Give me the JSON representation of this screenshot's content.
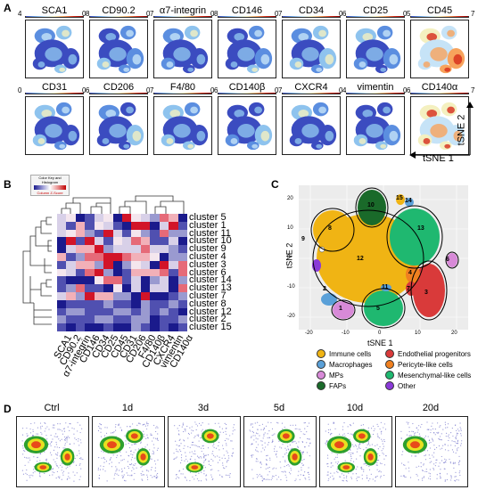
{
  "panels": {
    "a": "A",
    "b": "B",
    "c": "C",
    "d": "D"
  },
  "panel_a": {
    "markers": [
      {
        "name": "SCA1",
        "min": "4",
        "max": "8"
      },
      {
        "name": "CD90.2",
        "min": "0",
        "max": "7"
      },
      {
        "name": "α7-integrin",
        "min": "0",
        "max": "8"
      },
      {
        "name": "CD146",
        "min": "0",
        "max": "7"
      },
      {
        "name": "CD34",
        "min": "0",
        "max": "6"
      },
      {
        "name": "CD25",
        "min": "0",
        "max": "5"
      },
      {
        "name": "CD45",
        "min": "0",
        "max": "7"
      },
      {
        "name": "CD31",
        "min": "0",
        "max": "6"
      },
      {
        "name": "CD206",
        "min": "0",
        "max": "7"
      },
      {
        "name": "F4/80",
        "min": "0",
        "max": "6"
      },
      {
        "name": "CD140β",
        "min": "0",
        "max": "7"
      },
      {
        "name": "CXCR4",
        "min": "0",
        "max": "4"
      },
      {
        "name": "vimentin",
        "min": "0",
        "max": "6"
      },
      {
        "name": "CD140α",
        "min": "0",
        "max": "7"
      }
    ],
    "axis_x": "tSNE 1",
    "axis_y": "tSNE 2"
  },
  "panel_b": {
    "key_title": "Color Key and Histogram",
    "key_sub": "Column Z-Score",
    "clusters": [
      "cluster 5",
      "cluster 1",
      "cluster 11",
      "cluster 10",
      "cluster 9",
      "cluster 4",
      "cluster 3",
      "cluster 6",
      "cluster 14",
      "cluster 13",
      "cluster 7",
      "cluster 8",
      "cluster 12",
      "cluster 2",
      "cluster 15"
    ],
    "markers": [
      "SCA1",
      "CD90.2",
      "α7-integrin",
      "CD146",
      "CD34",
      "CD25",
      "CD45",
      "CD31",
      "CD206",
      "F4/80",
      "CD140β",
      "CXCR4",
      "vimentin",
      "CD140α"
    ]
  },
  "panel_c": {
    "xlabel": "tSNE 1",
    "ylabel": "tSNE 2",
    "xticks": [
      "-20",
      "-10",
      "0",
      "10",
      "20"
    ],
    "yticks": [
      "20",
      "10",
      "0",
      "-10",
      "-20"
    ],
    "cluster_numbers": [
      "10",
      "15",
      "14",
      "8",
      "13",
      "9",
      "12",
      "6",
      "2",
      "4",
      "7",
      "3",
      "11",
      "5",
      "1"
    ],
    "legend": [
      {
        "label": "Immune cells",
        "color": "#f0b414"
      },
      {
        "label": "Endothelial progenitors",
        "color": "#d93a3a"
      },
      {
        "label": "Macrophages",
        "color": "#5aa0d8"
      },
      {
        "label": "Pericyte-like cells",
        "color": "#f08020"
      },
      {
        "label": "MPs",
        "color": "#d88ad8"
      },
      {
        "label": "Mesenchymal-like cells",
        "color": "#1fb870"
      },
      {
        "label": "FAPs",
        "color": "#1a6a2a"
      },
      {
        "label": "Other",
        "color": "#8a3ad8"
      }
    ]
  },
  "panel_d": {
    "timepoints": [
      "Ctrl",
      "1d",
      "3d",
      "5d",
      "10d",
      "20d"
    ]
  }
}
